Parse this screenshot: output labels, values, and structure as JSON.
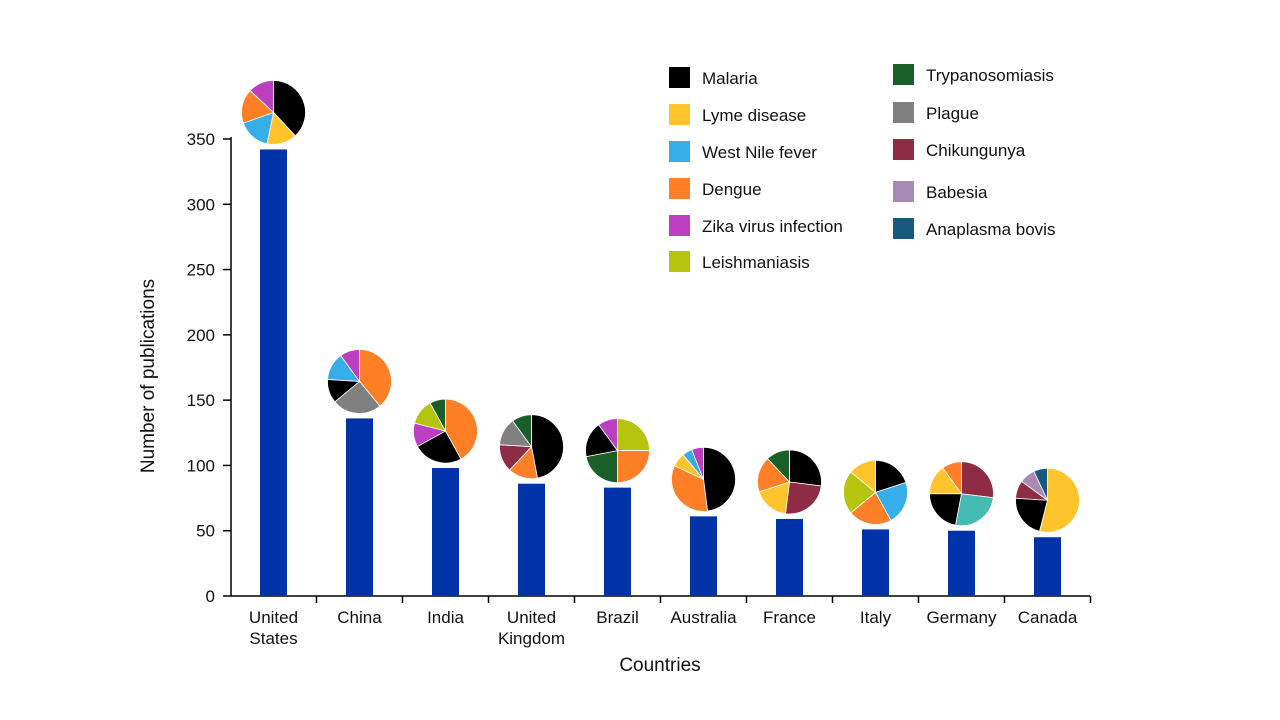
{
  "chart_data": {
    "type": "bar",
    "xlabel": "Countries",
    "ylabel": "Number of publications",
    "ylim": [
      0,
      350
    ],
    "yticks": [
      0,
      50,
      100,
      150,
      200,
      250,
      300,
      350
    ],
    "categories": [
      [
        "United",
        "States"
      ],
      [
        "China"
      ],
      [
        "India"
      ],
      [
        "United",
        "Kingdom"
      ],
      [
        "Brazil"
      ],
      [
        "Australia"
      ],
      [
        "France"
      ],
      [
        "Italy"
      ],
      [
        "Germany"
      ],
      [
        "Canada"
      ]
    ],
    "values": [
      342,
      136,
      98,
      86,
      83,
      61,
      59,
      51,
      50,
      45
    ],
    "bar_color": "#0033a8",
    "legend_position": "top-right",
    "legend": [
      {
        "name": "Malaria",
        "color": "#000000"
      },
      {
        "name": "Lyme disease",
        "color": "#ffc32b"
      },
      {
        "name": "West Nile fever",
        "color": "#35aeea"
      },
      {
        "name": "Dengue",
        "color": "#ff7f27"
      },
      {
        "name": "Zika virus infection",
        "color": "#bb3fc0"
      },
      {
        "name": "Leishmaniasis",
        "color": "#b5c40e"
      },
      {
        "name": "Trypanosomiasis",
        "color": "#1a5e2a"
      },
      {
        "name": "Plague",
        "color": "#808080"
      },
      {
        "name": "Chikungunya",
        "color": "#8e2c45"
      },
      {
        "name": "Babesia",
        "color": "#a88ab4"
      },
      {
        "name": "Anaplasma bovis",
        "color": "#175a80"
      }
    ],
    "pies": [
      [
        {
          "d": "Malaria",
          "v": 35
        },
        {
          "d": "Lyme disease",
          "v": 14
        },
        {
          "d": "West Nile fever",
          "v": 15
        },
        {
          "d": "Dengue",
          "v": 16
        },
        {
          "d": "Zika virus infection",
          "v": 12
        }
      ],
      [
        {
          "d": "Dengue",
          "v": 39
        },
        {
          "d": "Plague",
          "v": 25
        },
        {
          "d": "Malaria",
          "v": 12
        },
        {
          "d": "West Nile fever",
          "v": 14
        },
        {
          "d": "Zika virus infection",
          "v": 10
        }
      ],
      [
        {
          "d": "Dengue",
          "v": 42
        },
        {
          "d": "Malaria",
          "v": 25
        },
        {
          "d": "Zika virus infection",
          "v": 12
        },
        {
          "d": "Leishmaniasis",
          "v": 13
        },
        {
          "d": "Trypanosomiasis",
          "v": 8
        }
      ],
      [
        {
          "d": "Malaria",
          "v": 47
        },
        {
          "d": "Dengue",
          "v": 15
        },
        {
          "d": "Chikungunya",
          "v": 14
        },
        {
          "d": "Plague",
          "v": 14
        },
        {
          "d": "Trypanosomiasis",
          "v": 10
        }
      ],
      [
        {
          "d": "Leishmaniasis",
          "v": 25
        },
        {
          "d": "Dengue",
          "v": 25
        },
        {
          "d": "Trypanosomiasis",
          "v": 22
        },
        {
          "d": "Malaria",
          "v": 18
        },
        {
          "d": "Zika virus infection",
          "v": 10
        }
      ],
      [
        {
          "d": "Malaria",
          "v": 48
        },
        {
          "d": "Dengue",
          "v": 34
        },
        {
          "d": "Lyme disease",
          "v": 7
        },
        {
          "d": "West Nile fever",
          "v": 5
        },
        {
          "d": "Zika virus infection",
          "v": 6
        }
      ],
      [
        {
          "d": "Malaria",
          "v": 27
        },
        {
          "d": "Chikungunya",
          "v": 25
        },
        {
          "d": "Lyme disease",
          "v": 18
        },
        {
          "d": "Dengue",
          "v": 18
        },
        {
          "d": "Trypanosomiasis",
          "v": 12
        }
      ],
      [
        {
          "d": "Malaria",
          "v": 20
        },
        {
          "d": "West Nile fever",
          "v": 22
        },
        {
          "d": "Dengue",
          "v": 22
        },
        {
          "d": "Leishmaniasis",
          "v": 22
        },
        {
          "d": "Lyme disease",
          "v": 14
        }
      ],
      [
        {
          "d": "Chikungunya",
          "v": 27
        },
        {
          "d": "Cyan",
          "v": 26
        },
        {
          "d": "Malaria",
          "v": 22
        },
        {
          "d": "Lyme disease",
          "v": 15
        },
        {
          "d": "Dengue",
          "v": 10
        }
      ],
      [
        {
          "d": "Lyme disease",
          "v": 54
        },
        {
          "d": "Malaria",
          "v": 22
        },
        {
          "d": "Chikungunya",
          "v": 9
        },
        {
          "d": "Babesia",
          "v": 8
        },
        {
          "d": "Anaplasma bovis",
          "v": 7
        }
      ]
    ],
    "extra_colors": {
      "Cyan": "#44bcb4"
    }
  }
}
